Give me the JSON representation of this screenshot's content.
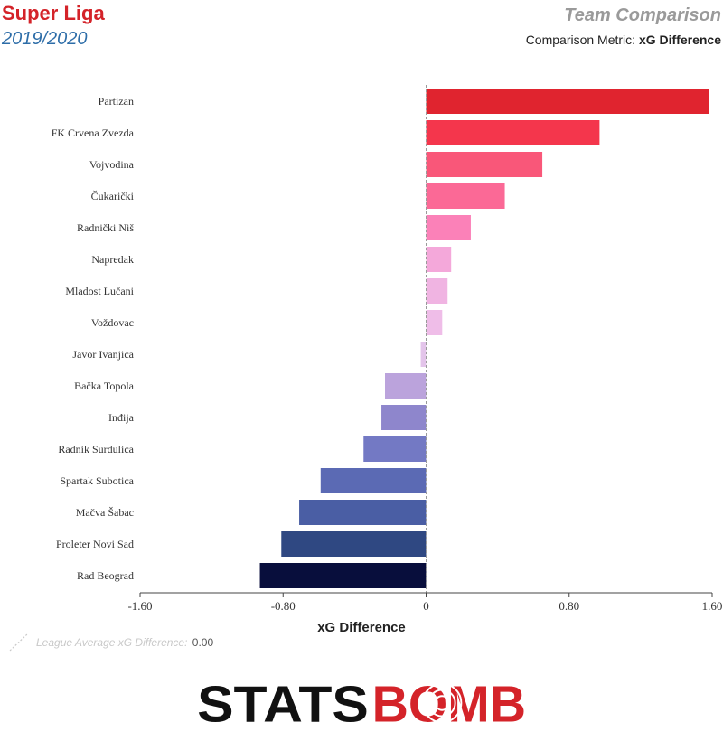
{
  "header": {
    "league": "Super Liga",
    "season": "2019/2020",
    "report_title": "Team Comparison",
    "metric_prefix": "Comparison Metric:",
    "metric_name": "xG Difference"
  },
  "footer": {
    "league_avg_label": "League Average xG Difference:",
    "league_avg_value": "0.00",
    "logo_left": "STATS",
    "logo_right": "BOMB"
  },
  "chart_data": {
    "type": "bar",
    "orientation": "horizontal",
    "xlabel": "xG Difference",
    "xlim": [
      -1.6,
      1.6
    ],
    "xticks": [
      -1.6,
      -0.8,
      0,
      0.8,
      1.6
    ],
    "xtick_labels": [
      "-1.60",
      "-0.80",
      "0",
      "0.80",
      "1.60"
    ],
    "reference_line": 0.0,
    "categories": [
      "Partizan",
      "FK Crvena Zvezda",
      "Vojvodina",
      "Čukarički",
      "Radnički Niš",
      "Napredak",
      "Mladost Lučani",
      "Voždovac",
      "Javor Ivanjica",
      "Bačka Topola",
      "Inđija",
      "Radnik Surdulica",
      "Spartak Subotica",
      "Mačva Šabac",
      "Proleter Novi Sad",
      "Rad Beograd"
    ],
    "values": [
      1.58,
      0.97,
      0.65,
      0.44,
      0.25,
      0.14,
      0.12,
      0.09,
      -0.03,
      -0.23,
      -0.25,
      -0.35,
      -0.59,
      -0.71,
      -0.81,
      -0.93
    ],
    "colors": [
      "#e0242f",
      "#f4364c",
      "#f95779",
      "#fb6996",
      "#fb81b8",
      "#f4a8da",
      "#f0b4e2",
      "#efbde8",
      "#e3c4ea",
      "#bba3dc",
      "#8e86cc",
      "#7379c4",
      "#5b6ab4",
      "#4a5ea4",
      "#2f4882",
      "#080e3c"
    ]
  }
}
